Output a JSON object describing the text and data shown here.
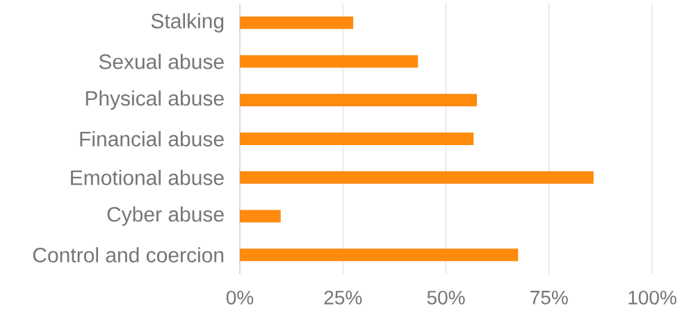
{
  "chart_data": {
    "type": "bar",
    "orientation": "horizontal",
    "categories": [
      "Stalking",
      "Sexual abuse",
      "Physical abuse",
      "Financial abuse",
      "Emotional abuse",
      "Cyber abuse",
      "Control and coercion"
    ],
    "values": [
      27.5,
      43.2,
      57.5,
      56.7,
      85.8,
      9.9,
      67.5
    ],
    "color": "#ff8a0d",
    "xlim": [
      0,
      100
    ],
    "xticks": [
      {
        "value": 0,
        "label": "0%"
      },
      {
        "value": 25,
        "label": "25%"
      },
      {
        "value": 50,
        "label": "50%"
      },
      {
        "value": 75,
        "label": "75%"
      },
      {
        "value": 100,
        "label": "100%"
      }
    ],
    "grid": "x"
  }
}
